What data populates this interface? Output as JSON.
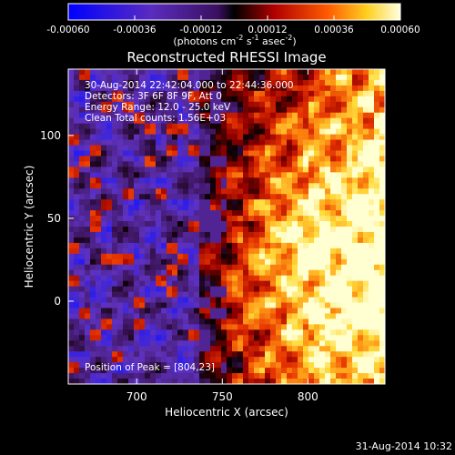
{
  "chart_data": {
    "type": "heatmap",
    "title": "Reconstructed RHESSI Image",
    "xlabel": "Heliocentric X (arcsec)",
    "ylabel": "Heliocentric Y (arcsec)",
    "xlim": [
      660,
      845
    ],
    "ylim": [
      -50,
      140
    ],
    "x_ticks": [
      700,
      750,
      800
    ],
    "y_ticks": [
      0,
      50,
      100
    ],
    "colorbar": {
      "range": [
        -0.0006,
        0.0006
      ],
      "ticks": [
        "-0.00060",
        "-0.00036",
        "-0.00012",
        "0.00012",
        "0.00036",
        "0.00060"
      ],
      "label_main": "(photons cm",
      "label_exp1": "-2",
      "label_mid": " s",
      "label_exp2": "-1",
      "label_end": " asec",
      "label_exp3": "-2",
      "label_close": ")"
    },
    "annotations": {
      "time_range": "30-Aug-2014 22:42:04.000 to 22:44:36.000",
      "detectors": "Detectors: 3F 6F 8F 9F, Att 0",
      "energy": "Energy Range: 12.0 - 25.0 keV",
      "clean": "Clean    Total counts: 1.56E+03",
      "peak": "Position of Peak = [804,23]"
    },
    "peak_position": [
      804,
      23
    ],
    "source_description": "bright emission region on the right half (x > 750), mottled negative/low values on the left"
  },
  "footer": {
    "timestamp": "31-Aug-2014 10:32"
  },
  "colors": {
    "background": "#000000",
    "text": "#ffffff",
    "low": "#1010ff",
    "mid_low": "#6a3fa0",
    "mid": "#2a0000",
    "mid_high": "#e02000",
    "high": "#ffff80"
  }
}
